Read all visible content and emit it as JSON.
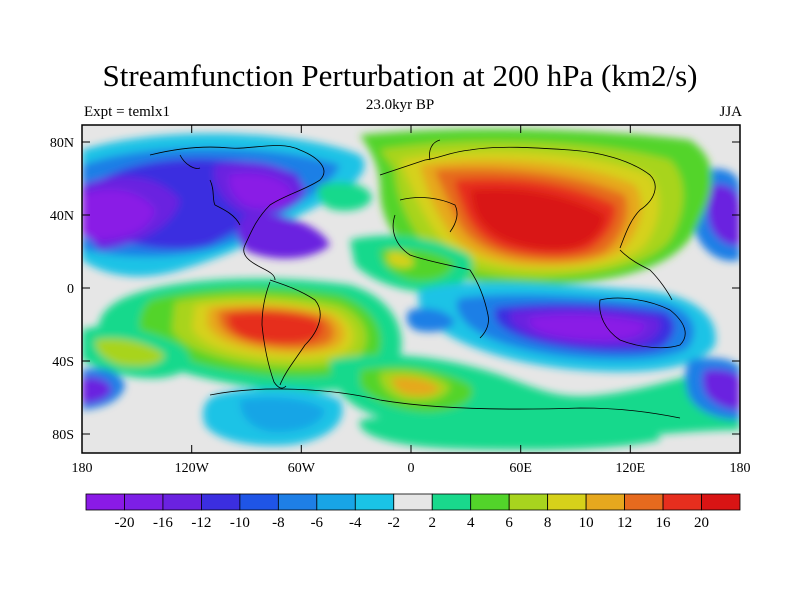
{
  "title": "Streamfunction Perturbation at 200 hPa (km2/s)",
  "left_label": "Expt = temlx1",
  "center_label": "23.0kyr BP",
  "right_label": "JJA",
  "lat_ticks": [
    "80N",
    "40N",
    "0",
    "40S",
    "80S"
  ],
  "lon_ticks": [
    "180",
    "120W",
    "60W",
    "0",
    "60E",
    "120E",
    "180"
  ],
  "colorbar": {
    "labels": [
      "-20",
      "-16",
      "-12",
      "-10",
      "-8",
      "-6",
      "-4",
      "-2",
      "2",
      "4",
      "6",
      "8",
      "10",
      "12",
      "16",
      "20"
    ],
    "colors": [
      "#8a1ae6",
      "#7d1fe6",
      "#6a22e0",
      "#3b2ee0",
      "#1f55e6",
      "#1e7fe6",
      "#18a5e6",
      "#1ac3e6",
      "#e6e6e6",
      "#19d98c",
      "#52d42a",
      "#a8d41e",
      "#d6d11a",
      "#e6a81e",
      "#e66a1e",
      "#e62e1e",
      "#d91414"
    ]
  },
  "fields": [
    {
      "name": "asia-high",
      "value": 20,
      "color": "#d91414"
    },
    {
      "name": "south-america-high",
      "value": 20,
      "color": "#e62e1e"
    },
    {
      "name": "north-america-low",
      "value": -20,
      "color": "#8a1ae6"
    },
    {
      "name": "australia-low",
      "value": -20,
      "color": "#7d1fe6"
    },
    {
      "name": "pacific-east-low",
      "value": -16,
      "color": "#7d1fe6"
    },
    {
      "name": "antarctic-low",
      "value": -4,
      "color": "#18a5e6"
    }
  ]
}
